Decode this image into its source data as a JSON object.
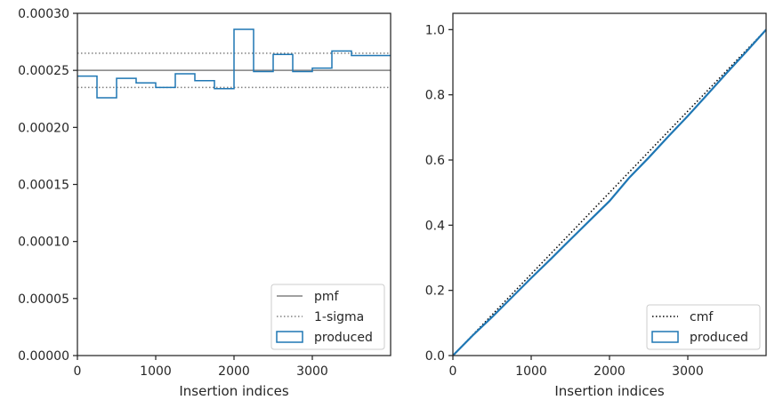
{
  "chart_data": [
    {
      "type": "line",
      "panel": "left",
      "xlabel": "Insertion indices",
      "ylabel": "",
      "xlim": [
        0,
        4000
      ],
      "ylim": [
        0,
        0.0003
      ],
      "xticks": [
        0,
        1000,
        2000,
        3000
      ],
      "xtick_labels": [
        "0",
        "1000",
        "2000",
        "3000"
      ],
      "yticks": [
        0,
        5e-05,
        0.0001,
        0.00015,
        0.0002,
        0.00025,
        0.0003
      ],
      "ytick_labels": [
        "0.00000",
        "0.00005",
        "0.00010",
        "0.00015",
        "0.00020",
        "0.00025",
        "0.00030"
      ],
      "grid": false,
      "legend_position": "lower-right",
      "reference_lines": [
        {
          "name": "pmf",
          "y": 0.00025,
          "style": "solid",
          "color": "#808080"
        },
        {
          "name": "1-sigma",
          "y": 0.000265,
          "style": "dotted",
          "color": "#808080"
        },
        {
          "name": "1-sigma",
          "y": 0.000235,
          "style": "dotted",
          "color": "#808080",
          "legend": false
        }
      ],
      "series": [
        {
          "name": "produced",
          "kind": "step-histogram",
          "color": "#1f77b4",
          "bin_edges": [
            0,
            250,
            500,
            750,
            1000,
            1250,
            1500,
            1750,
            2000,
            2250,
            2500,
            2750,
            3000,
            3250,
            3500,
            4000
          ],
          "values": [
            0.000245,
            0.000226,
            0.000243,
            0.000239,
            0.000235,
            0.000247,
            0.000241,
            0.000234,
            0.000286,
            0.000249,
            0.000264,
            0.000249,
            0.000252,
            0.000267,
            0.000263
          ]
        }
      ],
      "legend": [
        {
          "label": "pmf",
          "kind": "solid",
          "color": "#808080"
        },
        {
          "label": "1-sigma",
          "kind": "dotted",
          "color": "#808080"
        },
        {
          "label": "produced",
          "kind": "patch",
          "color": "#1f77b4"
        }
      ]
    },
    {
      "type": "line",
      "panel": "right",
      "xlabel": "Insertion indices",
      "ylabel": "",
      "xlim": [
        0,
        4000
      ],
      "ylim": [
        0,
        1.05
      ],
      "xticks": [
        0,
        1000,
        2000,
        3000
      ],
      "xtick_labels": [
        "0",
        "1000",
        "2000",
        "3000"
      ],
      "yticks": [
        0,
        0.2,
        0.4,
        0.6,
        0.8,
        1.0
      ],
      "ytick_labels": [
        "0.0",
        "0.2",
        "0.4",
        "0.6",
        "0.8",
        "1.0"
      ],
      "grid": false,
      "legend_position": "lower-right",
      "series": [
        {
          "name": "cmf",
          "kind": "dotted-line",
          "color": "#000000",
          "x": [
            0,
            4000
          ],
          "y": [
            0,
            1.0
          ]
        },
        {
          "name": "produced",
          "kind": "line",
          "color": "#1f77b4",
          "x": [
            0,
            250,
            500,
            750,
            1000,
            1250,
            1500,
            1750,
            2000,
            2250,
            2500,
            2750,
            3000,
            3250,
            3500,
            3750,
            4000
          ],
          "y": [
            0,
            0.061,
            0.118,
            0.178,
            0.238,
            0.296,
            0.356,
            0.415,
            0.474,
            0.545,
            0.607,
            0.672,
            0.735,
            0.801,
            0.868,
            0.933,
            1.0
          ]
        }
      ],
      "legend": [
        {
          "label": "cmf",
          "kind": "dotted",
          "color": "#000000"
        },
        {
          "label": "produced",
          "kind": "patch",
          "color": "#1f77b4"
        }
      ]
    }
  ]
}
